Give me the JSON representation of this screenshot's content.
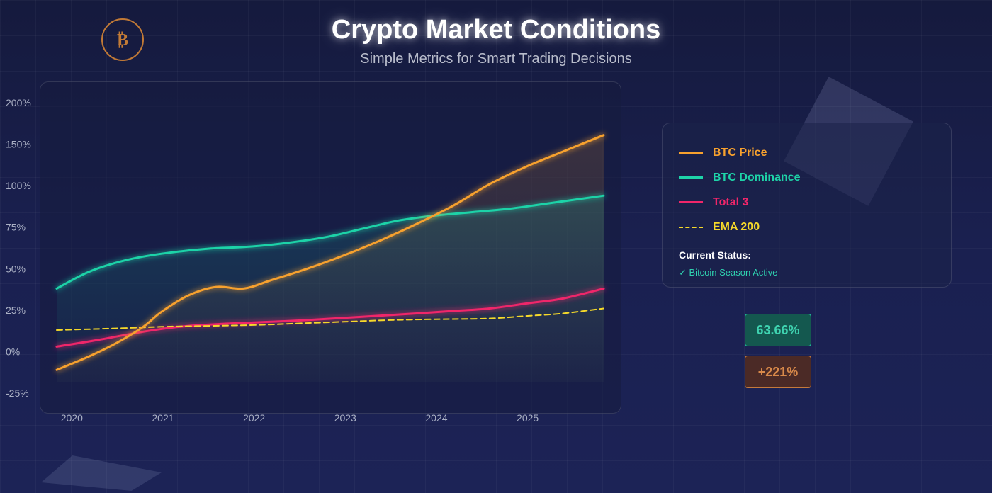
{
  "header": {
    "title": "Crypto Market Conditions",
    "subtitle": "Simple Metrics for Smart Trading Decisions",
    "logo_glyph": "₿"
  },
  "legend": {
    "items": [
      {
        "label": "BTC Price",
        "color": "#f7a12e",
        "style": "solid"
      },
      {
        "label": "BTC Dominance",
        "color": "#1ed3a8",
        "style": "solid"
      },
      {
        "label": "Total 3",
        "color": "#f0266a",
        "style": "solid"
      },
      {
        "label": "EMA 200",
        "color": "#f5d92a",
        "style": "dashed"
      }
    ],
    "status_title": "Current Status:",
    "status_text": "✓ Bitcoin Season Active",
    "status_color": "#2fd3b0"
  },
  "stats": {
    "dominance": "63.66%",
    "price_change": "+221%"
  },
  "chart_data": {
    "type": "line",
    "title": "",
    "xlabel": "",
    "ylabel": "",
    "x_ticks": [
      2020,
      2021,
      2022,
      2023,
      2024,
      2025
    ],
    "xlim": [
      2019.85,
      2025.85
    ],
    "y_ticks": [
      -25,
      0,
      25,
      50,
      75,
      100,
      150,
      200
    ],
    "y_tick_labels": [
      "-25%",
      "0%",
      "25%",
      "50%",
      "75%",
      "100%",
      "150%",
      "200%"
    ],
    "grid": false,
    "legend_placement": "right",
    "series": [
      {
        "name": "BTC Price",
        "color": "#f7a12e",
        "style": "solid",
        "fill": true,
        "x": [
          2019.85,
          2020.2,
          2020.5,
          2020.8,
          2021.0,
          2021.3,
          2021.6,
          2021.9,
          2022.2,
          2022.6,
          2023.0,
          2023.4,
          2023.8,
          2024.2,
          2024.6,
          2025.0,
          2025.4,
          2025.85
        ],
        "y": [
          -11,
          -3,
          5,
          15,
          24,
          34,
          39,
          38,
          43,
          50,
          58,
          67,
          77,
          88,
          102,
          123,
          141,
          161
        ]
      },
      {
        "name": "BTC Dominance",
        "color": "#1ed3a8",
        "style": "solid",
        "fill": true,
        "x": [
          2019.85,
          2020.2,
          2020.6,
          2021.0,
          2021.5,
          2021.9,
          2022.3,
          2022.8,
          2023.2,
          2023.6,
          2024.0,
          2024.4,
          2024.8,
          2025.2,
          2025.85
        ],
        "y": [
          38,
          48,
          55,
          59,
          62,
          63,
          65,
          69,
          74,
          79,
          82,
          84,
          86,
          89,
          94
        ]
      },
      {
        "name": "Total 3",
        "color": "#f0266a",
        "style": "solid",
        "fill": false,
        "x": [
          2019.85,
          2020.3,
          2020.8,
          2021.2,
          2021.6,
          2022.0,
          2022.6,
          2023.2,
          2023.8,
          2024.2,
          2024.6,
          2025.0,
          2025.4,
          2025.85
        ],
        "y": [
          3,
          7,
          12,
          15,
          16.5,
          17.5,
          19,
          21,
          23,
          24.5,
          26,
          29,
          32,
          38
        ]
      },
      {
        "name": "EMA 200",
        "color": "#f5d92a",
        "style": "dashed",
        "fill": false,
        "x": [
          2019.85,
          2020.5,
          2021.0,
          2021.5,
          2022.0,
          2022.5,
          2023.0,
          2023.5,
          2024.0,
          2024.6,
          2025.0,
          2025.4,
          2025.85
        ],
        "y": [
          13,
          14,
          15,
          15.5,
          16,
          17,
          18,
          19,
          19.5,
          20,
          21.5,
          23,
          26
        ]
      }
    ]
  }
}
